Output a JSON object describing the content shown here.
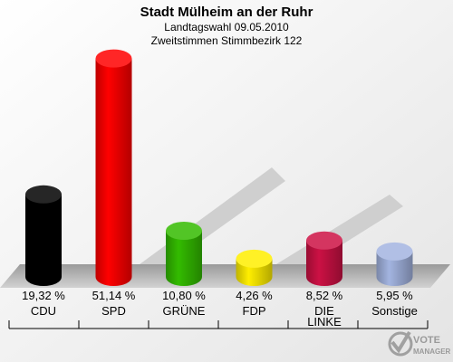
{
  "title": "Stadt Mülheim an der Ruhr",
  "subtitle1": "Landtagswahl 09.05.2010",
  "subtitle2": "Zweitstimmen Stimmbezirk 122",
  "logo": {
    "line1": "VOTE",
    "line2": "MANAGER"
  },
  "chart_data": {
    "type": "bar",
    "title": "Stadt Mülheim an der Ruhr",
    "subtitle": [
      "Landtagswahl 09.05.2010",
      "Zweitstimmen Stimmbezirk 122"
    ],
    "categories": [
      "CDU",
      "SPD",
      "GRÜNE",
      "FDP",
      "DIE LINKE",
      "Sonstige"
    ],
    "category_lines": [
      [
        "CDU"
      ],
      [
        "SPD"
      ],
      [
        "GRÜNE"
      ],
      [
        "FDP"
      ],
      [
        "DIE",
        "LINKE"
      ],
      [
        "Sonstige"
      ]
    ],
    "values": [
      19.32,
      51.14,
      10.8,
      4.26,
      8.52,
      5.95
    ],
    "value_labels": [
      "19,32 %",
      "51,14 %",
      "10,80 %",
      "4,26 %",
      "8,52 %",
      "5,95 %"
    ],
    "colors": [
      "#000000",
      "#ff0000",
      "#33bb00",
      "#ffee00",
      "#cc1144",
      "#a3b4e0"
    ],
    "unit": "%",
    "ylim": [
      0,
      55
    ],
    "grid": false,
    "legend": "none"
  }
}
